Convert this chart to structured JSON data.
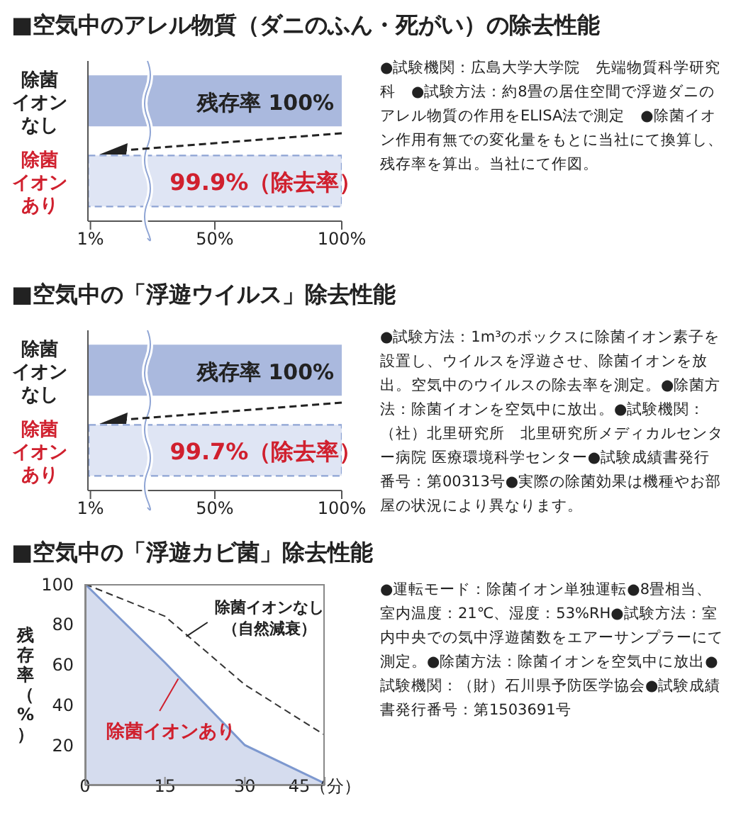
{
  "chart_data": [
    {
      "type": "bar",
      "orientation": "horizontal",
      "stacked": true,
      "title": "■空気中のアレル物質（ダニのふん・死がい）の除去性能",
      "categories": [
        "除菌イオンなし",
        "除菌イオンあり"
      ],
      "xlim": [
        0,
        100
      ],
      "xticks": [
        {
          "value": 1,
          "label": "1%"
        },
        {
          "value": 50,
          "label": "50%"
        },
        {
          "value": 100,
          "label": "100%"
        }
      ],
      "series": [
        {
          "color": "#aab9de",
          "values": [
            100,
            0.1
          ],
          "value_labels": [
            "残存率 100%",
            null
          ]
        },
        {
          "color": "#dfe5f4",
          "line_style": "dashed",
          "values": [
            0,
            99.9
          ],
          "value_labels": [
            null,
            "99.9%（除去率）"
          ]
        }
      ],
      "annotations": [
        "●試験機関：広島大学大学院　先端物質科学研究科　●試験方法：約8畳の居住空間で浮遊ダニのアレル物質の作用をELISA法で測定　●除菌イオン作用有無での変化量をもとに当社にて換算し、残存率を算出。当社にて作図。"
      ]
    },
    {
      "type": "bar",
      "orientation": "horizontal",
      "stacked": true,
      "title": "■空気中の「浮遊ウイルス」除去性能",
      "categories": [
        "除菌イオンなし",
        "除菌イオンあり"
      ],
      "xlim": [
        0,
        100
      ],
      "xticks": [
        {
          "value": 1,
          "label": "1%"
        },
        {
          "value": 50,
          "label": "50%"
        },
        {
          "value": 100,
          "label": "100%"
        }
      ],
      "series": [
        {
          "color": "#aab9de",
          "values": [
            100,
            0.3
          ],
          "value_labels": [
            "残存率 100%",
            null
          ]
        },
        {
          "color": "#dfe5f4",
          "line_style": "dashed",
          "values": [
            0,
            99.7
          ],
          "value_labels": [
            null,
            "99.7%（除去率）"
          ]
        }
      ],
      "annotations": [
        "●試験方法：1m³のボックスに除菌イオン素子を設置し、ウイルスを浮遊させ、除菌イオンを放出。空気中のウイルスの除去率を測定。●除菌方法：除菌イオンを空気中に放出。●試験機関：（社）北里研究所　北里研究所メディカルセンター病院 医療環境科学センター●試験成績書発行番号：第00313号●実際の除菌効果は機種やお部屋の状況により異なります。"
      ]
    },
    {
      "type": "line",
      "title": "■空気中の「浮遊カビ菌」除去性能",
      "ylabel": "残存率（%）",
      "x": [
        0,
        15,
        30,
        45
      ],
      "xlim": [
        0,
        45
      ],
      "xticks": [
        0,
        15,
        30,
        {
          "value": 45,
          "label": "45（分）"
        }
      ],
      "ylim": [
        0,
        100
      ],
      "yticks": [
        20,
        40,
        60,
        80,
        100
      ],
      "series": [
        {
          "name": "除菌イオンなし（自然減衰）",
          "type": "line",
          "line_style": "dashed",
          "color": "#333333",
          "values": [
            100,
            84,
            50,
            25
          ]
        },
        {
          "name": "除菌イオンあり",
          "type": "area",
          "color": "#7d98cf",
          "values": [
            100,
            61,
            20,
            1
          ]
        }
      ],
      "annotations": [
        "●運転モード：除菌イオン単独運転●8畳相当、室内温度：21℃、湿度：53%RH●試験方法：室内中央での気中浮遊菌数をエアーサンプラーにて測定。●除菌方法：除菌イオンを空気中に放出●試験機関：（財）石川県予防医学協会●試験成績書発行番号：第1503691号"
      ]
    }
  ]
}
